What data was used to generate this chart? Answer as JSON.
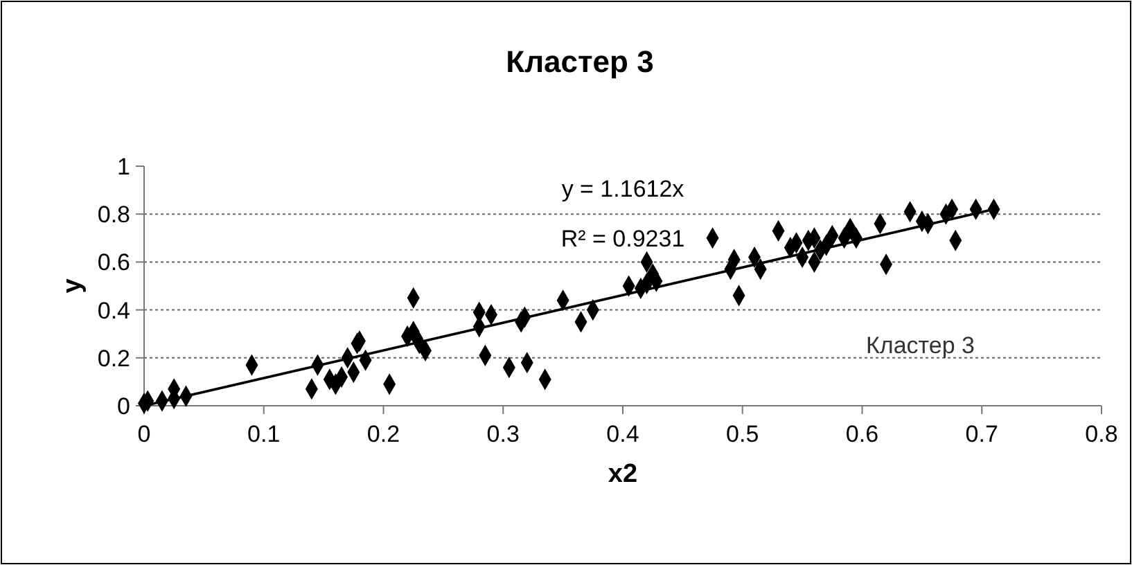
{
  "chart_data": {
    "type": "scatter",
    "title": "Кластер 3",
    "xlabel": "x2",
    "ylabel": "y",
    "xlim": [
      0,
      0.8
    ],
    "xticks": [
      0,
      0.1,
      0.2,
      0.3,
      0.4,
      0.5,
      0.6,
      0.7,
      0.8
    ],
    "ylim": [
      0,
      1
    ],
    "yticks": [
      0,
      0.2,
      0.4,
      0.6,
      0.8,
      1
    ],
    "grid": "y",
    "marker": "diamond",
    "annotations": [
      "y = 1.1612x",
      "R² = 0.9231",
      "Кластер 3"
    ],
    "series": [
      {
        "color": "#000000",
        "x": [
          0.0,
          0.003,
          0.015,
          0.025,
          0.025,
          0.035,
          0.09,
          0.14,
          0.145,
          0.155,
          0.16,
          0.165,
          0.17,
          0.175,
          0.178,
          0.18,
          0.185,
          0.205,
          0.22,
          0.225,
          0.225,
          0.228,
          0.23,
          0.235,
          0.28,
          0.28,
          0.285,
          0.29,
          0.305,
          0.315,
          0.318,
          0.32,
          0.335,
          0.35,
          0.365,
          0.375,
          0.405,
          0.415,
          0.42,
          0.42,
          0.425,
          0.428,
          0.475,
          0.49,
          0.493,
          0.497,
          0.51,
          0.515,
          0.53,
          0.54,
          0.545,
          0.55,
          0.555,
          0.56,
          0.56,
          0.565,
          0.57,
          0.575,
          0.585,
          0.59,
          0.595,
          0.615,
          0.62,
          0.64,
          0.65,
          0.655,
          0.67,
          0.675,
          0.678,
          0.695,
          0.71
        ],
        "values": [
          0.01,
          0.02,
          0.02,
          0.03,
          0.07,
          0.04,
          0.17,
          0.07,
          0.17,
          0.11,
          0.09,
          0.12,
          0.2,
          0.14,
          0.26,
          0.27,
          0.19,
          0.09,
          0.29,
          0.31,
          0.45,
          0.28,
          0.26,
          0.23,
          0.33,
          0.39,
          0.21,
          0.38,
          0.16,
          0.35,
          0.37,
          0.18,
          0.11,
          0.44,
          0.35,
          0.4,
          0.5,
          0.49,
          0.51,
          0.6,
          0.55,
          0.52,
          0.7,
          0.57,
          0.61,
          0.46,
          0.62,
          0.57,
          0.73,
          0.66,
          0.68,
          0.62,
          0.69,
          0.6,
          0.7,
          0.65,
          0.67,
          0.71,
          0.7,
          0.74,
          0.7,
          0.76,
          0.59,
          0.81,
          0.77,
          0.76,
          0.8,
          0.82,
          0.69,
          0.82,
          0.82
        ]
      },
      {
        "type": "line",
        "marker": "none",
        "color": "#000000",
        "x": [
          0,
          0.71
        ],
        "values": [
          0,
          0.82
        ]
      }
    ]
  }
}
